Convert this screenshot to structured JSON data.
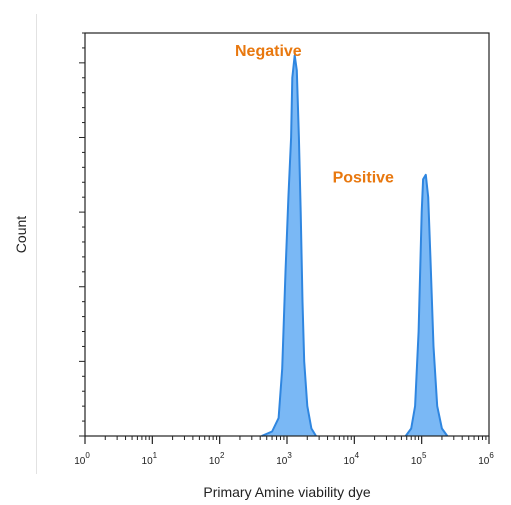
{
  "chart_data": {
    "type": "area",
    "xlabel": "Primary Amine viability dye",
    "ylabel": "Count",
    "x_scale": "log",
    "xlim": [
      1,
      1000000
    ],
    "ylim": [
      0,
      270
    ],
    "x_ticks": [
      {
        "value": 1,
        "base": "10",
        "exp": "0"
      },
      {
        "value": 10,
        "base": "10",
        "exp": "1"
      },
      {
        "value": 100,
        "base": "10",
        "exp": "2"
      },
      {
        "value": 1000,
        "base": "10",
        "exp": "3"
      },
      {
        "value": 10000,
        "base": "10",
        "exp": "4"
      },
      {
        "value": 100000,
        "base": "10",
        "exp": "5"
      },
      {
        "value": 1000000,
        "base": "10",
        "exp": "6"
      }
    ],
    "y_ticks": [
      0,
      50,
      100,
      150,
      200,
      250
    ],
    "grid": false,
    "legend": "none",
    "fill_color": "#7ab8f5",
    "line_color": "#2f86e0",
    "annotations": [
      {
        "text": "Negative",
        "x": 1000,
        "y": 250
      },
      {
        "text": "Positive",
        "x": 90000,
        "y": 172
      }
    ],
    "series": [
      {
        "x": [
          420,
          600,
          750,
          850,
          950,
          1050,
          1150,
          1200,
          1300,
          1400,
          1500,
          1600,
          1700,
          1800,
          2000,
          2300,
          2700
        ],
        "y": [
          0,
          3,
          12,
          45,
          110,
          160,
          200,
          240,
          255,
          245,
          200,
          150,
          90,
          50,
          20,
          5,
          0
        ]
      },
      {
        "x": [
          58000,
          70000,
          80000,
          90000,
          100000,
          105000,
          115000,
          125000,
          135000,
          150000,
          170000,
          200000,
          240000
        ],
        "y": [
          0,
          5,
          20,
          70,
          150,
          172,
          175,
          160,
          120,
          60,
          20,
          5,
          0
        ]
      }
    ]
  }
}
